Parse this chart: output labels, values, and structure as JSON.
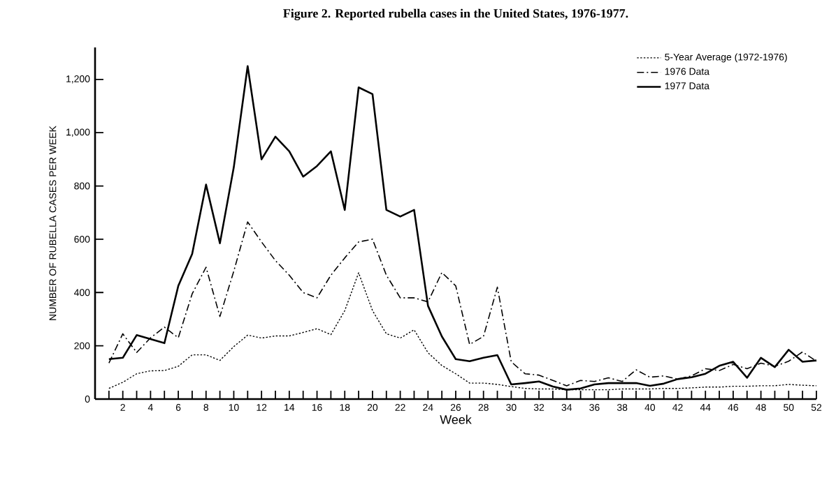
{
  "chart_data": {
    "type": "line",
    "title": "Figure 2.  Reported rubella cases in the United States, 1976-1977.",
    "xlabel": "Week",
    "ylabel": "NUMBER OF RUBELLA CASES PER WEEK",
    "x": [
      1,
      2,
      3,
      4,
      5,
      6,
      7,
      8,
      9,
      10,
      11,
      12,
      13,
      14,
      15,
      16,
      17,
      18,
      19,
      20,
      21,
      22,
      23,
      24,
      25,
      26,
      27,
      28,
      29,
      30,
      31,
      32,
      33,
      34,
      35,
      36,
      37,
      38,
      39,
      40,
      41,
      42,
      43,
      44,
      45,
      46,
      47,
      48,
      49,
      50,
      51,
      52
    ],
    "xlim": [
      0,
      52
    ],
    "ylim": [
      0,
      1320
    ],
    "xticks": [
      {
        "value": 1,
        "label": null
      },
      2,
      {
        "value": 3,
        "label": null
      },
      4,
      {
        "value": 5,
        "label": null
      },
      6,
      {
        "value": 7,
        "label": null
      },
      8,
      {
        "value": 9,
        "label": null
      },
      10,
      {
        "value": 11,
        "label": null
      },
      12,
      {
        "value": 13,
        "label": null
      },
      14,
      {
        "value": 15,
        "label": null
      },
      16,
      {
        "value": 17,
        "label": null
      },
      18,
      {
        "value": 19,
        "label": null
      },
      20,
      {
        "value": 21,
        "label": null
      },
      22,
      {
        "value": 23,
        "label": null
      },
      24,
      {
        "value": 25,
        "label": null
      },
      26,
      {
        "value": 27,
        "label": null
      },
      28,
      {
        "value": 29,
        "label": null
      },
      30,
      {
        "value": 31,
        "label": null
      },
      32,
      {
        "value": 33,
        "label": null
      },
      34,
      {
        "value": 35,
        "label": null
      },
      36,
      {
        "value": 37,
        "label": null
      },
      38,
      {
        "value": 39,
        "label": null
      },
      40,
      {
        "value": 41,
        "label": null
      },
      42,
      {
        "value": 43,
        "label": null
      },
      44,
      {
        "value": 45,
        "label": null
      },
      46,
      {
        "value": 47,
        "label": null
      },
      48,
      {
        "value": 49,
        "label": null
      },
      50,
      {
        "value": 51,
        "label": null
      },
      52
    ],
    "yticks": [
      0,
      {
        "value": 200,
        "label": "200"
      },
      {
        "value": 400,
        "label": "400"
      },
      {
        "value": 600,
        "label": "600"
      },
      {
        "value": 800,
        "label": "800"
      },
      {
        "value": 1000,
        "label": "1,000"
      },
      {
        "value": 1200,
        "label": "1,200"
      }
    ],
    "legend": "top right",
    "grid": false,
    "series": [
      {
        "name": "5-Year Average (1972-1976)",
        "color": "#000000",
        "line_style": "dotted",
        "values": [
          40,
          63,
          95,
          106,
          107,
          123,
          166,
          166,
          145,
          197,
          240,
          229,
          237,
          237,
          250,
          264,
          242,
          332,
          474,
          332,
          245,
          229,
          260,
          174,
          126,
          95,
          60,
          60,
          55,
          47,
          40,
          38,
          38,
          35,
          35,
          35,
          35,
          38,
          38,
          38,
          40,
          40,
          42,
          45,
          45,
          48,
          48,
          50,
          50,
          55,
          52,
          50
        ]
      },
      {
        "name": "1976 Data",
        "color": "#000000",
        "line_style": "dashdot",
        "values": [
          135,
          245,
          175,
          230,
          270,
          230,
          395,
          495,
          310,
          480,
          665,
          590,
          520,
          465,
          400,
          380,
          465,
          530,
          590,
          600,
          465,
          380,
          380,
          365,
          475,
          425,
          205,
          235,
          420,
          140,
          95,
          90,
          70,
          50,
          70,
          66,
          80,
          66,
          110,
          82,
          87,
          75,
          87,
          114,
          107,
          130,
          114,
          135,
          123,
          142,
          177,
          142
        ]
      },
      {
        "name": "1977 Data",
        "color": "#000000",
        "line_style": "solid",
        "values": [
          150,
          155,
          240,
          225,
          210,
          425,
          545,
          805,
          585,
          870,
          1250,
          900,
          985,
          930,
          835,
          875,
          930,
          710,
          1170,
          1145,
          710,
          685,
          710,
          350,
          235,
          150,
          142,
          155,
          165,
          55,
          60,
          66,
          47,
          35,
          40,
          55,
          60,
          60,
          60,
          50,
          58,
          75,
          82,
          95,
          125,
          140,
          80,
          155,
          120,
          185,
          140,
          145
        ]
      }
    ]
  }
}
